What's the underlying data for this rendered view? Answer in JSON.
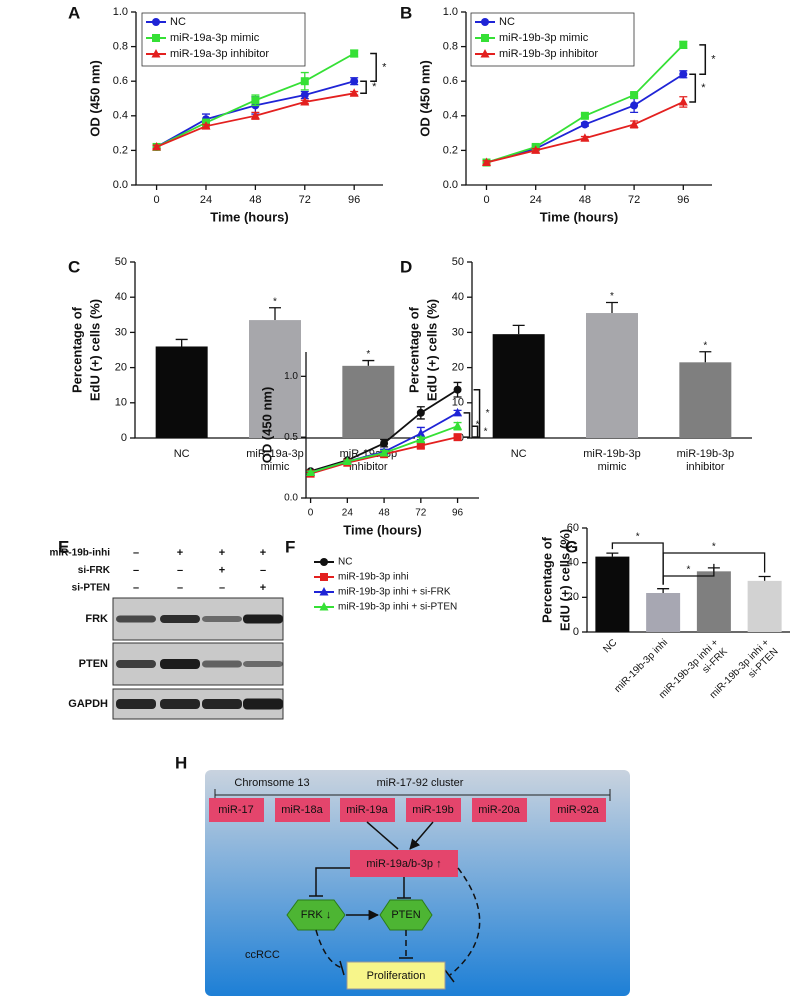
{
  "chart_data": [
    {
      "type": "line",
      "panel": "A",
      "xlabel": "Time (hours)",
      "ylabel": "OD (450 nm)",
      "x": [
        0,
        24,
        48,
        72,
        96
      ],
      "xlim": [
        -10,
        110
      ],
      "xticks": [
        0,
        24,
        48,
        72,
        96
      ],
      "ylim": [
        0,
        1
      ],
      "yticks": [
        {
          "value": 0,
          "label": "0.0"
        },
        0.2,
        0.4,
        0.6,
        0.8,
        {
          "value": 1,
          "label": "1.0"
        }
      ],
      "series": [
        {
          "name": "NC",
          "color": "#1f24d6",
          "marker": "circle",
          "values": [
            0.22,
            0.38,
            0.46,
            0.52,
            0.6
          ],
          "errors": [
            0.01,
            0.03,
            0.05,
            0.02,
            0.02
          ]
        },
        {
          "name": "miR-19a-3p mimic",
          "color": "#35e035",
          "marker": "square",
          "values": [
            0.22,
            0.36,
            0.49,
            0.6,
            0.76
          ],
          "errors": [
            0.01,
            0.02,
            0.03,
            0.05,
            0.02
          ]
        },
        {
          "name": "miR-19a-3p inhibitor",
          "color": "#e3201f",
          "marker": "triangle",
          "values": [
            0.22,
            0.34,
            0.4,
            0.48,
            0.53
          ],
          "errors": [
            0.01,
            0.01,
            0.02,
            0.01,
            0.01
          ]
        }
      ],
      "sig_labels": [
        "*",
        "*"
      ]
    },
    {
      "type": "line",
      "panel": "B",
      "xlabel": "Time (hours)",
      "ylabel": "OD (450 nm)",
      "x": [
        0,
        24,
        48,
        72,
        96
      ],
      "xlim": [
        -10,
        110
      ],
      "xticks": [
        0,
        24,
        48,
        72,
        96
      ],
      "ylim": [
        0,
        1
      ],
      "yticks": [
        {
          "value": 0,
          "label": "0.0"
        },
        0.2,
        0.4,
        0.6,
        0.8,
        {
          "value": 1,
          "label": "1.0"
        }
      ],
      "series": [
        {
          "name": "NC",
          "color": "#1f24d6",
          "marker": "circle",
          "values": [
            0.13,
            0.21,
            0.35,
            0.46,
            0.64
          ],
          "errors": [
            0.01,
            0.01,
            0.01,
            0.04,
            0.02
          ]
        },
        {
          "name": "miR-19b-3p mimic",
          "color": "#35e035",
          "marker": "square",
          "values": [
            0.13,
            0.22,
            0.4,
            0.52,
            0.81
          ],
          "errors": [
            0.01,
            0.01,
            0.01,
            0.01,
            0.02
          ]
        },
        {
          "name": "miR-19b-3p inhibitor",
          "color": "#e3201f",
          "marker": "triangle",
          "values": [
            0.13,
            0.2,
            0.27,
            0.35,
            0.48
          ],
          "errors": [
            0.01,
            0.01,
            0.01,
            0.02,
            0.03
          ]
        }
      ],
      "sig_labels": [
        "*",
        "*"
      ]
    },
    {
      "type": "bar",
      "panel": "C",
      "ylabel": [
        "Percentage of",
        "EdU (+) cells (%)"
      ],
      "categories": [
        [
          "NC"
        ],
        [
          "miR-19a-3p",
          "mimic"
        ],
        [
          "miR-19a-3p",
          "inhibitor"
        ]
      ],
      "values": [
        26,
        33.5,
        20.5
      ],
      "errors": [
        2,
        3.5,
        1.5
      ],
      "colors": [
        "#0a0a0a",
        "#a7a7ab",
        "#7f7f7f"
      ],
      "stars": [
        null,
        "*",
        "*"
      ],
      "ylim": [
        0,
        50
      ],
      "yticks": [
        0,
        10,
        20,
        30,
        40,
        50
      ]
    },
    {
      "type": "bar",
      "panel": "D",
      "ylabel": [
        "Percentage of",
        "EdU (+) cells (%)"
      ],
      "categories": [
        [
          "NC"
        ],
        [
          "miR-19b-3p",
          "mimic"
        ],
        [
          "miR-19b-3p",
          "inhibitor"
        ]
      ],
      "values": [
        29.5,
        35.5,
        21.5
      ],
      "errors": [
        2.5,
        3,
        3
      ],
      "colors": [
        "#0a0a0a",
        "#a7a7ab",
        "#7f7f7f"
      ],
      "stars": [
        null,
        "*",
        "*"
      ],
      "ylim": [
        0,
        50
      ],
      "yticks": [
        0,
        10,
        20,
        30,
        40,
        50
      ]
    },
    {
      "type": "line",
      "panel": "F",
      "xlabel": "Time (hours)",
      "ylabel": "OD (450 nm)",
      "x": [
        0,
        24,
        48,
        72,
        96
      ],
      "xlim": [
        -3,
        110
      ],
      "xticks": [
        0,
        24,
        48,
        72,
        96
      ],
      "ylim": [
        0,
        1.2
      ],
      "yticks": [
        {
          "value": 0,
          "label": "0.0"
        },
        0.5,
        {
          "value": 1,
          "label": "1.0"
        }
      ],
      "series": [
        {
          "name": "NC",
          "color": "#111111",
          "marker": "circle",
          "values": [
            0.22,
            0.31,
            0.45,
            0.7,
            0.89
          ],
          "errors": [
            0.01,
            0.01,
            0.03,
            0.05,
            0.06
          ]
        },
        {
          "name": "miR-19b-3p inhi",
          "color": "#e3201f",
          "marker": "square",
          "values": [
            0.2,
            0.29,
            0.36,
            0.43,
            0.5
          ],
          "errors": [
            0.01,
            0.01,
            0.01,
            0.02,
            0.02
          ]
        },
        {
          "name": "miR-19b-3p inhi + si-FRK",
          "color": "#1f24d6",
          "marker": "triangle",
          "values": [
            0.21,
            0.3,
            0.38,
            0.53,
            0.7
          ],
          "errors": [
            0.01,
            0.01,
            0.02,
            0.05,
            0.02
          ]
        },
        {
          "name": "miR-19b-3p inhi + si-PTEN",
          "color": "#35e035",
          "marker": "triangle",
          "values": [
            0.21,
            0.3,
            0.37,
            0.48,
            0.59
          ],
          "errors": [
            0.01,
            0.01,
            0.02,
            0.02,
            0.03
          ]
        }
      ],
      "sig_labels": [
        "*",
        "*",
        "*"
      ]
    },
    {
      "type": "bar",
      "panel": "G",
      "ylabel": [
        "Percentage of",
        "EdU (+) cells (%)"
      ],
      "categories": [
        [
          "NC"
        ],
        [
          "miR-19b-3p inhi"
        ],
        [
          "miR-19b-3p inhi +",
          "si-FRK"
        ],
        [
          "miR-19b-3p inhi +",
          "si-PTEN"
        ]
      ],
      "values": [
        43.5,
        22.5,
        35,
        29.5
      ],
      "errors": [
        2,
        2.5,
        2,
        2.5
      ],
      "colors": [
        "#0a0a0a",
        "#a7a7b2",
        "#7f7f7f",
        "#d2d2d2"
      ],
      "ylim": [
        0,
        60
      ],
      "yticks": [
        0,
        20,
        40,
        60
      ],
      "sig_labels": [
        "*",
        "*",
        "*"
      ]
    }
  ],
  "blot": {
    "panel": "E",
    "conditions": [
      {
        "label": "miR-19b-inhi",
        "signs": [
          "–",
          "+",
          "+",
          "+"
        ]
      },
      {
        "label": "si-FRK",
        "signs": [
          "–",
          "–",
          "+",
          "–"
        ]
      },
      {
        "label": "si-PTEN",
        "signs": [
          "–",
          "–",
          "–",
          "+"
        ]
      }
    ],
    "proteins": [
      "FRK",
      "PTEN",
      "GAPDH"
    ]
  },
  "diagram": {
    "panel": "H",
    "chromosome": "Chromsome 13",
    "cluster": "miR-17-92 cluster",
    "mirnas": [
      "miR-17",
      "miR-18a",
      "miR-19a",
      "miR-19b",
      "miR-20a",
      "miR-92a"
    ],
    "hub": "miR-19a/b-3p ↑",
    "frk": "FRK ↓",
    "pten": "PTEN",
    "outcome": "Proliferation",
    "context": "ccRCC"
  }
}
